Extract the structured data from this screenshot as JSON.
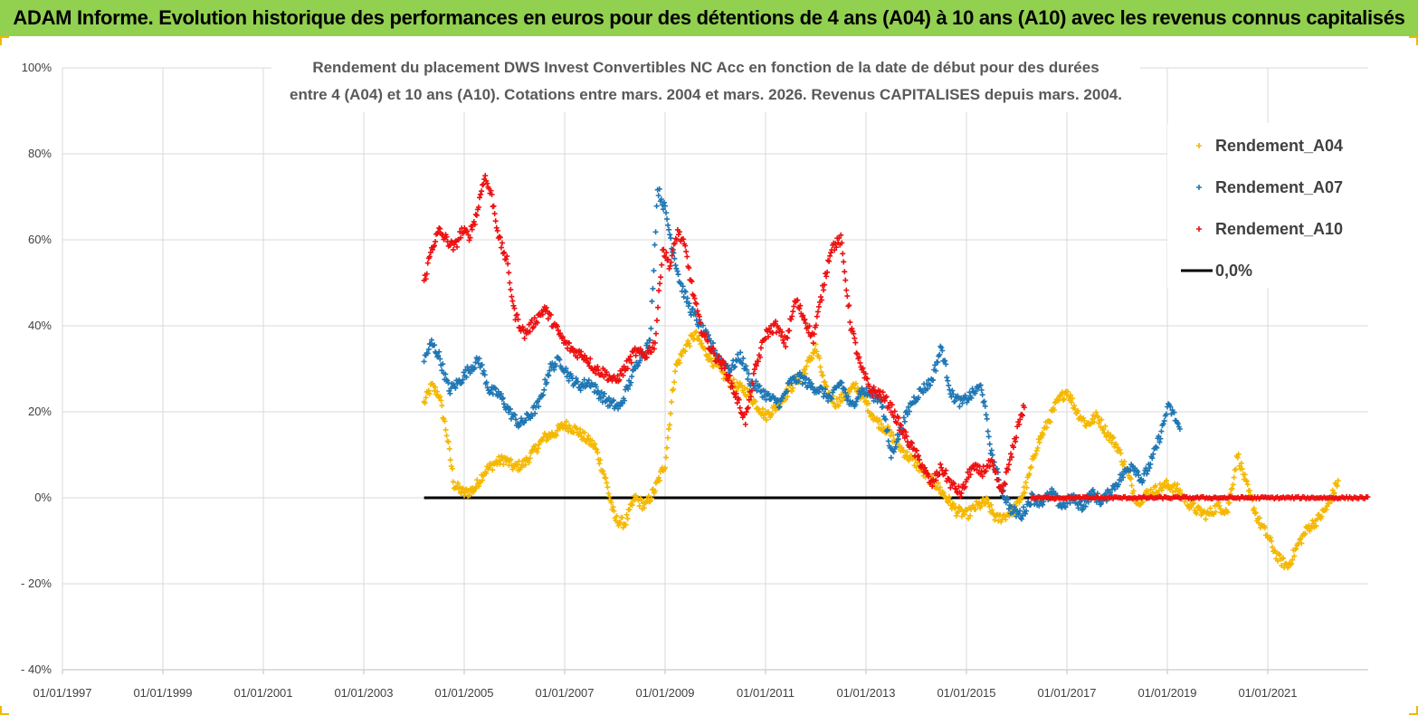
{
  "banner": {
    "title": "ADAM Informe. Evolution historique des performances en euros pour des détentions de 4 ans (A04) à 10 ans (A10) avec les revenus connus capitalisés"
  },
  "colors": {
    "banner_bg": "#92d050",
    "a04": "#f5b800",
    "a07": "#1f77b4",
    "a10": "#ee1111",
    "zero": "#000000"
  },
  "chart_data": {
    "type": "scatter",
    "title_line1": "Rendement du placement DWS Invest Convertibles NC Acc en fonction de la date de début pour des durées",
    "title_line2": "entre 4 (A04) et 10 ans (A10). Cotations entre mars. 2004 et mars. 2026. Revenus CAPITALISES depuis mars. 2004.",
    "x_range": [
      1997.0,
      2023.0
    ],
    "x_ticks": [
      1997,
      1999,
      2001,
      2003,
      2005,
      2007,
      2009,
      2011,
      2013,
      2015,
      2017,
      2019,
      2021
    ],
    "x_tick_labels": [
      "01/01/1997",
      "01/01/1999",
      "01/01/2001",
      "01/01/2003",
      "01/01/2005",
      "01/01/2007",
      "01/01/2009",
      "01/01/2011",
      "01/01/2013",
      "01/01/2015",
      "01/01/2017",
      "01/01/2019",
      "01/01/2021"
    ],
    "y_range": [
      -40,
      100
    ],
    "y_ticks": [
      -40,
      -20,
      0,
      20,
      40,
      60,
      80,
      100
    ],
    "y_tick_labels": [
      "- 40%",
      "- 20%",
      "0%",
      "20%",
      "40%",
      "60%",
      "80%",
      "100%"
    ],
    "gridlines": true,
    "legend_position": "top-right",
    "series": [
      {
        "name": "Rendement_A04",
        "marker": "+",
        "x": [
          2004.2,
          2004.35,
          2004.5,
          2004.65,
          2004.8,
          2005.0,
          2005.2,
          2005.4,
          2005.6,
          2005.8,
          2006.0,
          2006.2,
          2006.4,
          2006.6,
          2006.8,
          2007.0,
          2007.2,
          2007.4,
          2007.6,
          2007.8,
          2008.0,
          2008.2,
          2008.4,
          2008.6,
          2008.8,
          2009.0,
          2009.2,
          2009.4,
          2009.6,
          2009.8,
          2010.0,
          2010.2,
          2010.4,
          2010.6,
          2010.8,
          2011.0,
          2011.2,
          2011.4,
          2011.6,
          2011.8,
          2012.0,
          2012.2,
          2012.4,
          2012.6,
          2012.8,
          2013.0,
          2013.2,
          2013.4,
          2013.6,
          2013.8,
          2014.0,
          2014.2,
          2014.4,
          2014.6,
          2014.8,
          2015.0,
          2015.2,
          2015.4,
          2015.6,
          2015.8,
          2016.0,
          2016.2,
          2016.4,
          2016.6,
          2016.8,
          2017.0,
          2017.2,
          2017.4,
          2017.6,
          2017.8,
          2018.0,
          2018.2,
          2018.4,
          2018.6,
          2018.8,
          2019.0,
          2019.2,
          2019.4,
          2019.6,
          2019.8,
          2020.0,
          2020.2,
          2020.4,
          2020.6,
          2020.8,
          2021.0,
          2021.2,
          2021.4,
          2021.6,
          2021.8,
          2022.0,
          2022.2,
          2022.4
        ],
        "y": [
          22,
          26,
          24,
          15,
          3,
          1,
          2,
          6,
          8,
          9,
          7,
          8,
          11,
          14,
          15,
          17,
          16,
          14,
          12,
          5,
          -5,
          -6,
          0,
          -2,
          2,
          8,
          30,
          35,
          38,
          34,
          31,
          28,
          26,
          25,
          22,
          19,
          21,
          24,
          27,
          30,
          35,
          25,
          22,
          24,
          26,
          22,
          18,
          16,
          13,
          10,
          8,
          5,
          3,
          0,
          -3,
          -4,
          -2,
          -1,
          -5,
          -4,
          -2,
          3,
          12,
          17,
          22,
          25,
          20,
          17,
          19,
          15,
          12,
          6,
          -1,
          1,
          2,
          3,
          2,
          -1,
          -3,
          -4,
          -2,
          -3,
          10,
          2,
          -5,
          -9,
          -14,
          -16,
          -11,
          -7,
          -5,
          -2,
          4
        ]
      },
      {
        "name": "Rendement_A07",
        "marker": "+",
        "x": [
          2004.2,
          2004.35,
          2004.5,
          2004.7,
          2004.9,
          2005.1,
          2005.3,
          2005.5,
          2005.7,
          2005.9,
          2006.1,
          2006.3,
          2006.5,
          2006.7,
          2006.9,
          2007.1,
          2007.3,
          2007.5,
          2007.7,
          2007.9,
          2008.1,
          2008.3,
          2008.5,
          2008.7,
          2008.85,
          2009.0,
          2009.15,
          2009.3,
          2009.5,
          2009.7,
          2009.9,
          2010.1,
          2010.3,
          2010.5,
          2010.7,
          2010.9,
          2011.1,
          2011.3,
          2011.5,
          2011.7,
          2011.9,
          2012.1,
          2012.3,
          2012.5,
          2012.7,
          2012.9,
          2013.1,
          2013.3,
          2013.5,
          2013.7,
          2013.9,
          2014.1,
          2014.3,
          2014.5,
          2014.7,
          2014.9,
          2015.1,
          2015.3,
          2015.5,
          2015.7,
          2015.9,
          2016.1,
          2016.3,
          2016.5,
          2016.7,
          2016.9,
          2017.1,
          2017.3,
          2017.5,
          2017.7,
          2017.9,
          2018.1,
          2018.3,
          2018.5,
          2018.7,
          2018.9,
          2019.0,
          2019.1,
          2019.25
        ],
        "y": [
          32,
          36,
          33,
          25,
          27,
          30,
          32,
          25,
          24,
          20,
          17,
          19,
          22,
          30,
          32,
          28,
          26,
          27,
          24,
          22,
          21,
          27,
          33,
          36,
          72,
          67,
          58,
          50,
          44,
          40,
          36,
          32,
          30,
          33,
          27,
          25,
          23,
          22,
          27,
          28,
          26,
          25,
          23,
          27,
          21,
          25,
          24,
          23,
          10,
          16,
          22,
          25,
          27,
          35,
          24,
          22,
          24,
          26,
          10,
          2,
          -3,
          -4,
          0,
          -1,
          1,
          -2,
          0,
          -2,
          1,
          -1,
          2,
          5,
          8,
          4,
          9,
          16,
          21,
          20,
          16
        ]
      },
      {
        "name": "Rendement_A10",
        "marker": "+",
        "x": [
          2004.2,
          2004.35,
          2004.5,
          2004.65,
          2004.8,
          2004.95,
          2005.1,
          2005.25,
          2005.4,
          2005.55,
          2005.7,
          2005.85,
          2006.0,
          2006.2,
          2006.4,
          2006.6,
          2006.8,
          2007.0,
          2007.2,
          2007.4,
          2007.6,
          2007.8,
          2008.0,
          2008.2,
          2008.4,
          2008.6,
          2008.8,
          2008.95,
          2009.1,
          2009.25,
          2009.4,
          2009.55,
          2009.7,
          2009.85,
          2010.0,
          2010.2,
          2010.4,
          2010.6,
          2010.8,
          2011.0,
          2011.2,
          2011.4,
          2011.6,
          2011.8,
          2011.95,
          2012.1,
          2012.3,
          2012.5,
          2012.7,
          2012.9,
          2013.1,
          2013.3,
          2013.5,
          2013.7,
          2013.9,
          2014.1,
          2014.3,
          2014.5,
          2014.7,
          2014.9,
          2015.1,
          2015.3,
          2015.5,
          2015.7,
          2015.9,
          2016.05,
          2016.15
        ],
        "y": [
          50,
          58,
          62,
          60,
          58,
          62,
          61,
          66,
          75,
          70,
          60,
          55,
          43,
          38,
          41,
          44,
          40,
          36,
          34,
          33,
          30,
          29,
          27,
          30,
          34,
          33,
          36,
          58,
          54,
          62,
          58,
          48,
          40,
          36,
          33,
          30,
          24,
          18,
          30,
          38,
          40,
          36,
          46,
          41,
          37,
          46,
          58,
          60,
          40,
          30,
          25,
          24,
          21,
          16,
          12,
          8,
          3,
          7,
          3,
          1,
          7,
          6,
          8,
          1,
          10,
          18,
          21
        ]
      }
    ],
    "zero_line": {
      "name": "0,0%",
      "x_start": 2004.2,
      "x_end": 2023.0,
      "y": 0
    },
    "a10_flat_segment": {
      "x_start": 2016.3,
      "x_end": 2023.0,
      "y": 0
    },
    "legend": [
      "Rendement_A04",
      "Rendement_A07",
      "Rendement_A10",
      "0,0%"
    ]
  }
}
